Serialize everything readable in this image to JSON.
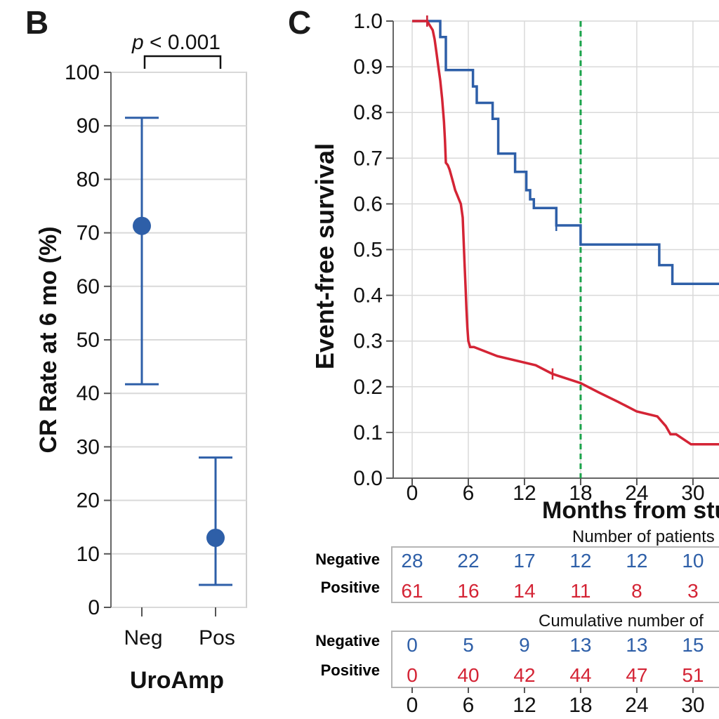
{
  "panel_b": {
    "letter": "B",
    "p_prefix": "p",
    "p_suffix": " < 0.001",
    "ylabel": "CR Rate at 6 mo (%)",
    "xlabel": "UroAmp",
    "y_ticks": [
      "0",
      "10",
      "20",
      "30",
      "40",
      "50",
      "60",
      "70",
      "80",
      "90",
      "100"
    ],
    "categories": [
      "Neg",
      "Pos"
    ]
  },
  "panel_c": {
    "letter": "C",
    "ylabel": "Event-free survival",
    "xlabel": "Months from study",
    "y_ticks": [
      "0.0",
      "0.1",
      "0.2",
      "0.3",
      "0.4",
      "0.5",
      "0.6",
      "0.7",
      "0.8",
      "0.9",
      "1.0"
    ],
    "x_ticks": [
      "0",
      "6",
      "12",
      "18",
      "24",
      "30"
    ],
    "risk_header": "Number of patients",
    "cum_header": "Cumulative number of",
    "row_negative": "Negative",
    "row_positive": "Positive",
    "risk_negative": [
      "28",
      "22",
      "17",
      "12",
      "12",
      "10"
    ],
    "risk_positive": [
      "61",
      "16",
      "14",
      "11",
      "8",
      "3"
    ],
    "cum_negative": [
      "0",
      "5",
      "9",
      "13",
      "13",
      "15"
    ],
    "cum_positive": [
      "0",
      "40",
      "42",
      "44",
      "47",
      "51"
    ],
    "bottom_ticks": [
      "0",
      "6",
      "12",
      "18",
      "24",
      "30"
    ]
  },
  "colors": {
    "negative": "#2e5fa8",
    "positive": "#d42435",
    "reference_line": "#1aa34a",
    "grid": "#d9d9d9"
  },
  "chart_data": [
    {
      "type": "scatter",
      "title": "",
      "xlabel": "UroAmp",
      "ylabel": "CR Rate at 6 mo (%)",
      "ylim": [
        0,
        100
      ],
      "categories": [
        "Neg",
        "Pos"
      ],
      "values": [
        71.3,
        13.0
      ],
      "ci_lower": [
        41.7,
        4.2
      ],
      "ci_upper": [
        91.5,
        28.0
      ],
      "annotation": "p < 0.001",
      "grid": true
    },
    {
      "type": "line",
      "title": "",
      "xlabel": "Months from study",
      "ylabel": "Event-free survival",
      "xlim": [
        -2,
        33
      ],
      "ylim": [
        0,
        1
      ],
      "grid": true,
      "reference_x": 18,
      "series": [
        {
          "name": "Negative",
          "x": [
            0,
            3,
            3,
            3.6,
            3.6,
            6.5,
            6.5,
            6.9,
            6.9,
            8.6,
            8.6,
            9.2,
            9.2,
            11,
            11,
            12.2,
            12.2,
            12.6,
            12.6,
            13,
            13,
            15.4,
            15.4,
            18,
            18,
            26.4,
            26.4,
            27.8,
            27.8,
            33
          ],
          "y": [
            1.0,
            1.0,
            0.965,
            0.965,
            0.893,
            0.893,
            0.857,
            0.857,
            0.821,
            0.821,
            0.786,
            0.786,
            0.71,
            0.71,
            0.67,
            0.67,
            0.63,
            0.63,
            0.61,
            0.61,
            0.591,
            0.591,
            0.553,
            0.553,
            0.511,
            0.511,
            0.466,
            0.466,
            0.425,
            0.425
          ],
          "censor_x": [
            1.6,
            15.4
          ]
        },
        {
          "name": "Positive",
          "x": [
            0,
            1.4,
            1.4,
            1.6,
            1.6,
            2.2,
            2.4,
            2.6,
            2.8,
            3.0,
            3.2,
            3.4,
            3.5,
            3.6,
            3.8,
            4.0,
            4.2,
            4.4,
            4.6,
            4.8,
            5.0,
            5.2,
            5.4,
            5.5,
            5.6,
            5.7,
            5.8,
            5.9,
            6.0,
            6.2,
            6.6,
            6.6,
            9.1,
            9.1,
            13.2,
            13.2,
            15,
            15,
            18,
            18,
            20,
            20,
            22,
            22,
            24,
            24,
            26.2,
            26.2,
            27.1,
            27.1,
            27.6,
            27.6,
            28.2,
            28.2,
            29.8,
            29.8,
            33
          ],
          "y": [
            1.0,
            1.0,
            1.0,
            1.0,
            1.0,
            0.98,
            0.96,
            0.93,
            0.9,
            0.87,
            0.83,
            0.78,
            0.74,
            0.69,
            0.685,
            0.675,
            0.66,
            0.645,
            0.63,
            0.62,
            0.61,
            0.6,
            0.57,
            0.52,
            0.47,
            0.42,
            0.37,
            0.33,
            0.3,
            0.287,
            0.287,
            0.287,
            0.267,
            0.267,
            0.247,
            0.247,
            0.228,
            0.228,
            0.208,
            0.208,
            0.187,
            0.187,
            0.167,
            0.167,
            0.146,
            0.146,
            0.135,
            0.135,
            0.114,
            0.114,
            0.096,
            0.096,
            0.096,
            0.096,
            0.074,
            0.074,
            0.074
          ],
          "censor_x": [
            1.6,
            15.0
          ]
        }
      ]
    }
  ]
}
